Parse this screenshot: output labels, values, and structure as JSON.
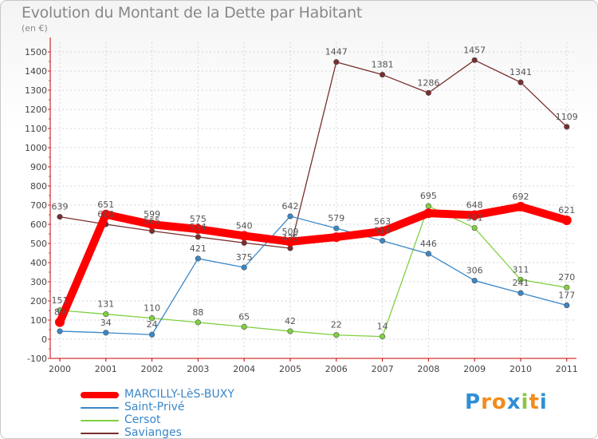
{
  "title": "Evolution du Montant de la Dette par Habitant",
  "subtitle": "(en €)",
  "logo": {
    "letters": [
      "P",
      "r",
      "o",
      "x",
      "i",
      "t",
      "i"
    ],
    "colors": [
      "#2f8fd6",
      "#f28c1c",
      "#f28c1c",
      "#2f8fd6",
      "#8cc63f",
      "#f28c1c",
      "#2f8fd6"
    ]
  },
  "chart_data": {
    "type": "line",
    "title": "Evolution du Montant de la Dette par Habitant",
    "subtitle": "(en €)",
    "xlabel": "",
    "ylabel": "",
    "categories": [
      "2000",
      "2001",
      "2002",
      "2003",
      "2004",
      "2005",
      "2006",
      "2007",
      "2008",
      "2009",
      "2010",
      "2011"
    ],
    "yticks": [
      -100,
      0,
      100,
      200,
      300,
      400,
      500,
      600,
      700,
      800,
      900,
      1000,
      1100,
      1200,
      1300,
      1400,
      1500
    ],
    "ylim": [
      -100,
      1550
    ],
    "grid": true,
    "legend_position": "bottom-left",
    "series": [
      {
        "name": "MARCILLY-LèS-BUXY",
        "color": "#ff0000",
        "values": [
          89,
          651,
          599,
          575,
          540,
          509,
          533,
          563,
          658,
          648,
          692,
          621
        ],
        "labels": [
          "89",
          "651",
          "599",
          "575",
          "540",
          "509",
          "",
          "563",
          "",
          "648",
          "692",
          "621"
        ]
      },
      {
        "name": "Saint-Privé",
        "color": "#3a87c8",
        "values": [
          42,
          34,
          24,
          421,
          375,
          642,
          579,
          514,
          446,
          306,
          241,
          177
        ],
        "labels": [
          "",
          "34",
          "24",
          "421",
          "375",
          "642",
          "579",
          "514",
          "446",
          "306",
          "241",
          "177"
        ]
      },
      {
        "name": "Cersot",
        "color": "#80d040",
        "values": [
          151,
          131,
          110,
          88,
          65,
          42,
          22,
          14,
          695,
          581,
          311,
          270
        ],
        "labels": [
          "151",
          "131",
          "110",
          "88",
          "65",
          "42",
          "22",
          "14",
          "695",
          "581",
          "311",
          "270"
        ]
      },
      {
        "name": "Savianges",
        "color": "#7a2e2e",
        "values": [
          639,
          600,
          565,
          534,
          503,
          475,
          1447,
          1381,
          1286,
          1457,
          1341,
          1109
        ],
        "labels": [
          "639",
          "600",
          "565",
          "534",
          "",
          "475",
          "1447",
          "1381",
          "1286",
          "1457",
          "1341",
          "1109"
        ]
      }
    ]
  }
}
